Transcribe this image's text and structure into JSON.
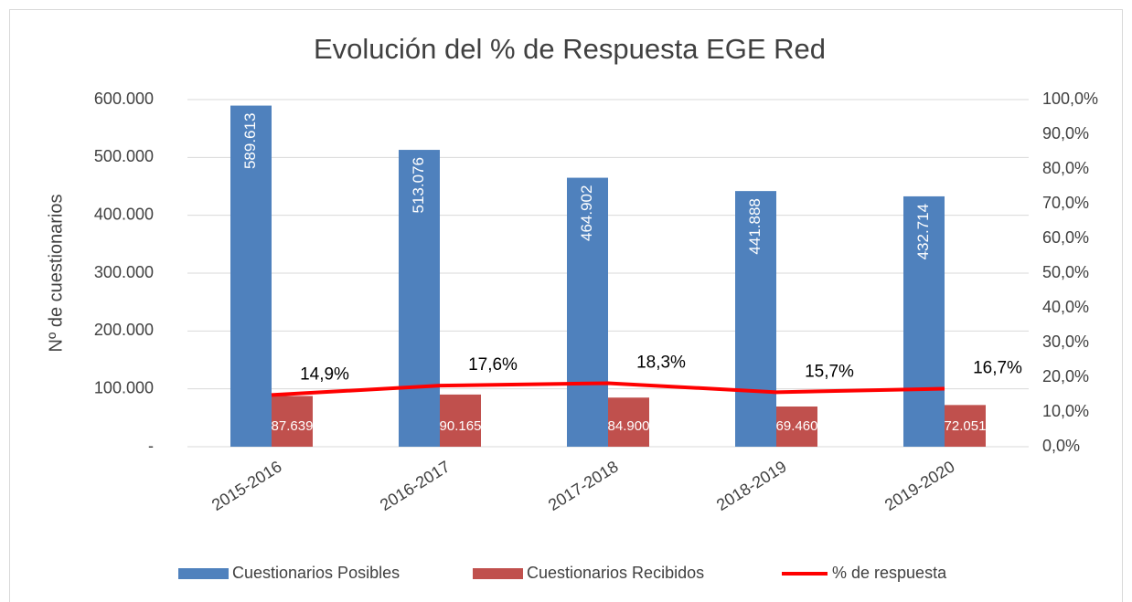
{
  "chart_data": {
    "type": "bar",
    "title": "Evolución del % de Respuesta EGE Red",
    "y_label": "Nº de cuestionarios",
    "categories": [
      "2015-2016",
      "2016-2017",
      "2017-2018",
      "2018-2019",
      "2019-2020"
    ],
    "series": [
      {
        "name": "Cuestionarios Posibles",
        "color": "#4f81bd",
        "type": "bar",
        "values": [
          589613,
          513076,
          464902,
          441888,
          432714
        ],
        "value_labels": [
          "589.613",
          "513.076",
          "464.902",
          "441.888",
          "432.714"
        ]
      },
      {
        "name": "Cuestionarios Recibidos",
        "color": "#c0504d",
        "type": "bar",
        "values": [
          87639,
          90165,
          84900,
          69460,
          72051
        ],
        "value_labels": [
          "87.639",
          "90.165",
          "84.900",
          "69.460",
          "72.051"
        ]
      },
      {
        "name": "% de respuesta",
        "color": "#ff0000",
        "type": "line",
        "axis": "y2",
        "values": [
          14.9,
          17.6,
          18.3,
          15.7,
          16.7
        ],
        "value_labels": [
          "14,9%",
          "17,6%",
          "18,3%",
          "15,7%",
          "16,7%"
        ]
      }
    ],
    "ylim": [
      0,
      600000
    ],
    "yticks": [
      {
        "value": 0,
        "label": "-"
      },
      {
        "value": 100000,
        "label": "100.000"
      },
      {
        "value": 200000,
        "label": "200.000"
      },
      {
        "value": 300000,
        "label": "300.000"
      },
      {
        "value": 400000,
        "label": "400.000"
      },
      {
        "value": 500000,
        "label": "500.000"
      },
      {
        "value": 600000,
        "label": "600.000"
      }
    ],
    "y2lim": [
      0,
      100
    ],
    "y2ticks": [
      {
        "value": 0,
        "label": "0,0%"
      },
      {
        "value": 10,
        "label": "10,0%"
      },
      {
        "value": 20,
        "label": "20,0%"
      },
      {
        "value": 30,
        "label": "30,0%"
      },
      {
        "value": 40,
        "label": "40,0%"
      },
      {
        "value": 50,
        "label": "50,0%"
      },
      {
        "value": 60,
        "label": "60,0%"
      },
      {
        "value": 70,
        "label": "70,0%"
      },
      {
        "value": 80,
        "label": "80,0%"
      },
      {
        "value": 90,
        "label": "90,0%"
      },
      {
        "value": 100,
        "label": "100,0%"
      }
    ],
    "grid": true,
    "legend": "bottom"
  }
}
